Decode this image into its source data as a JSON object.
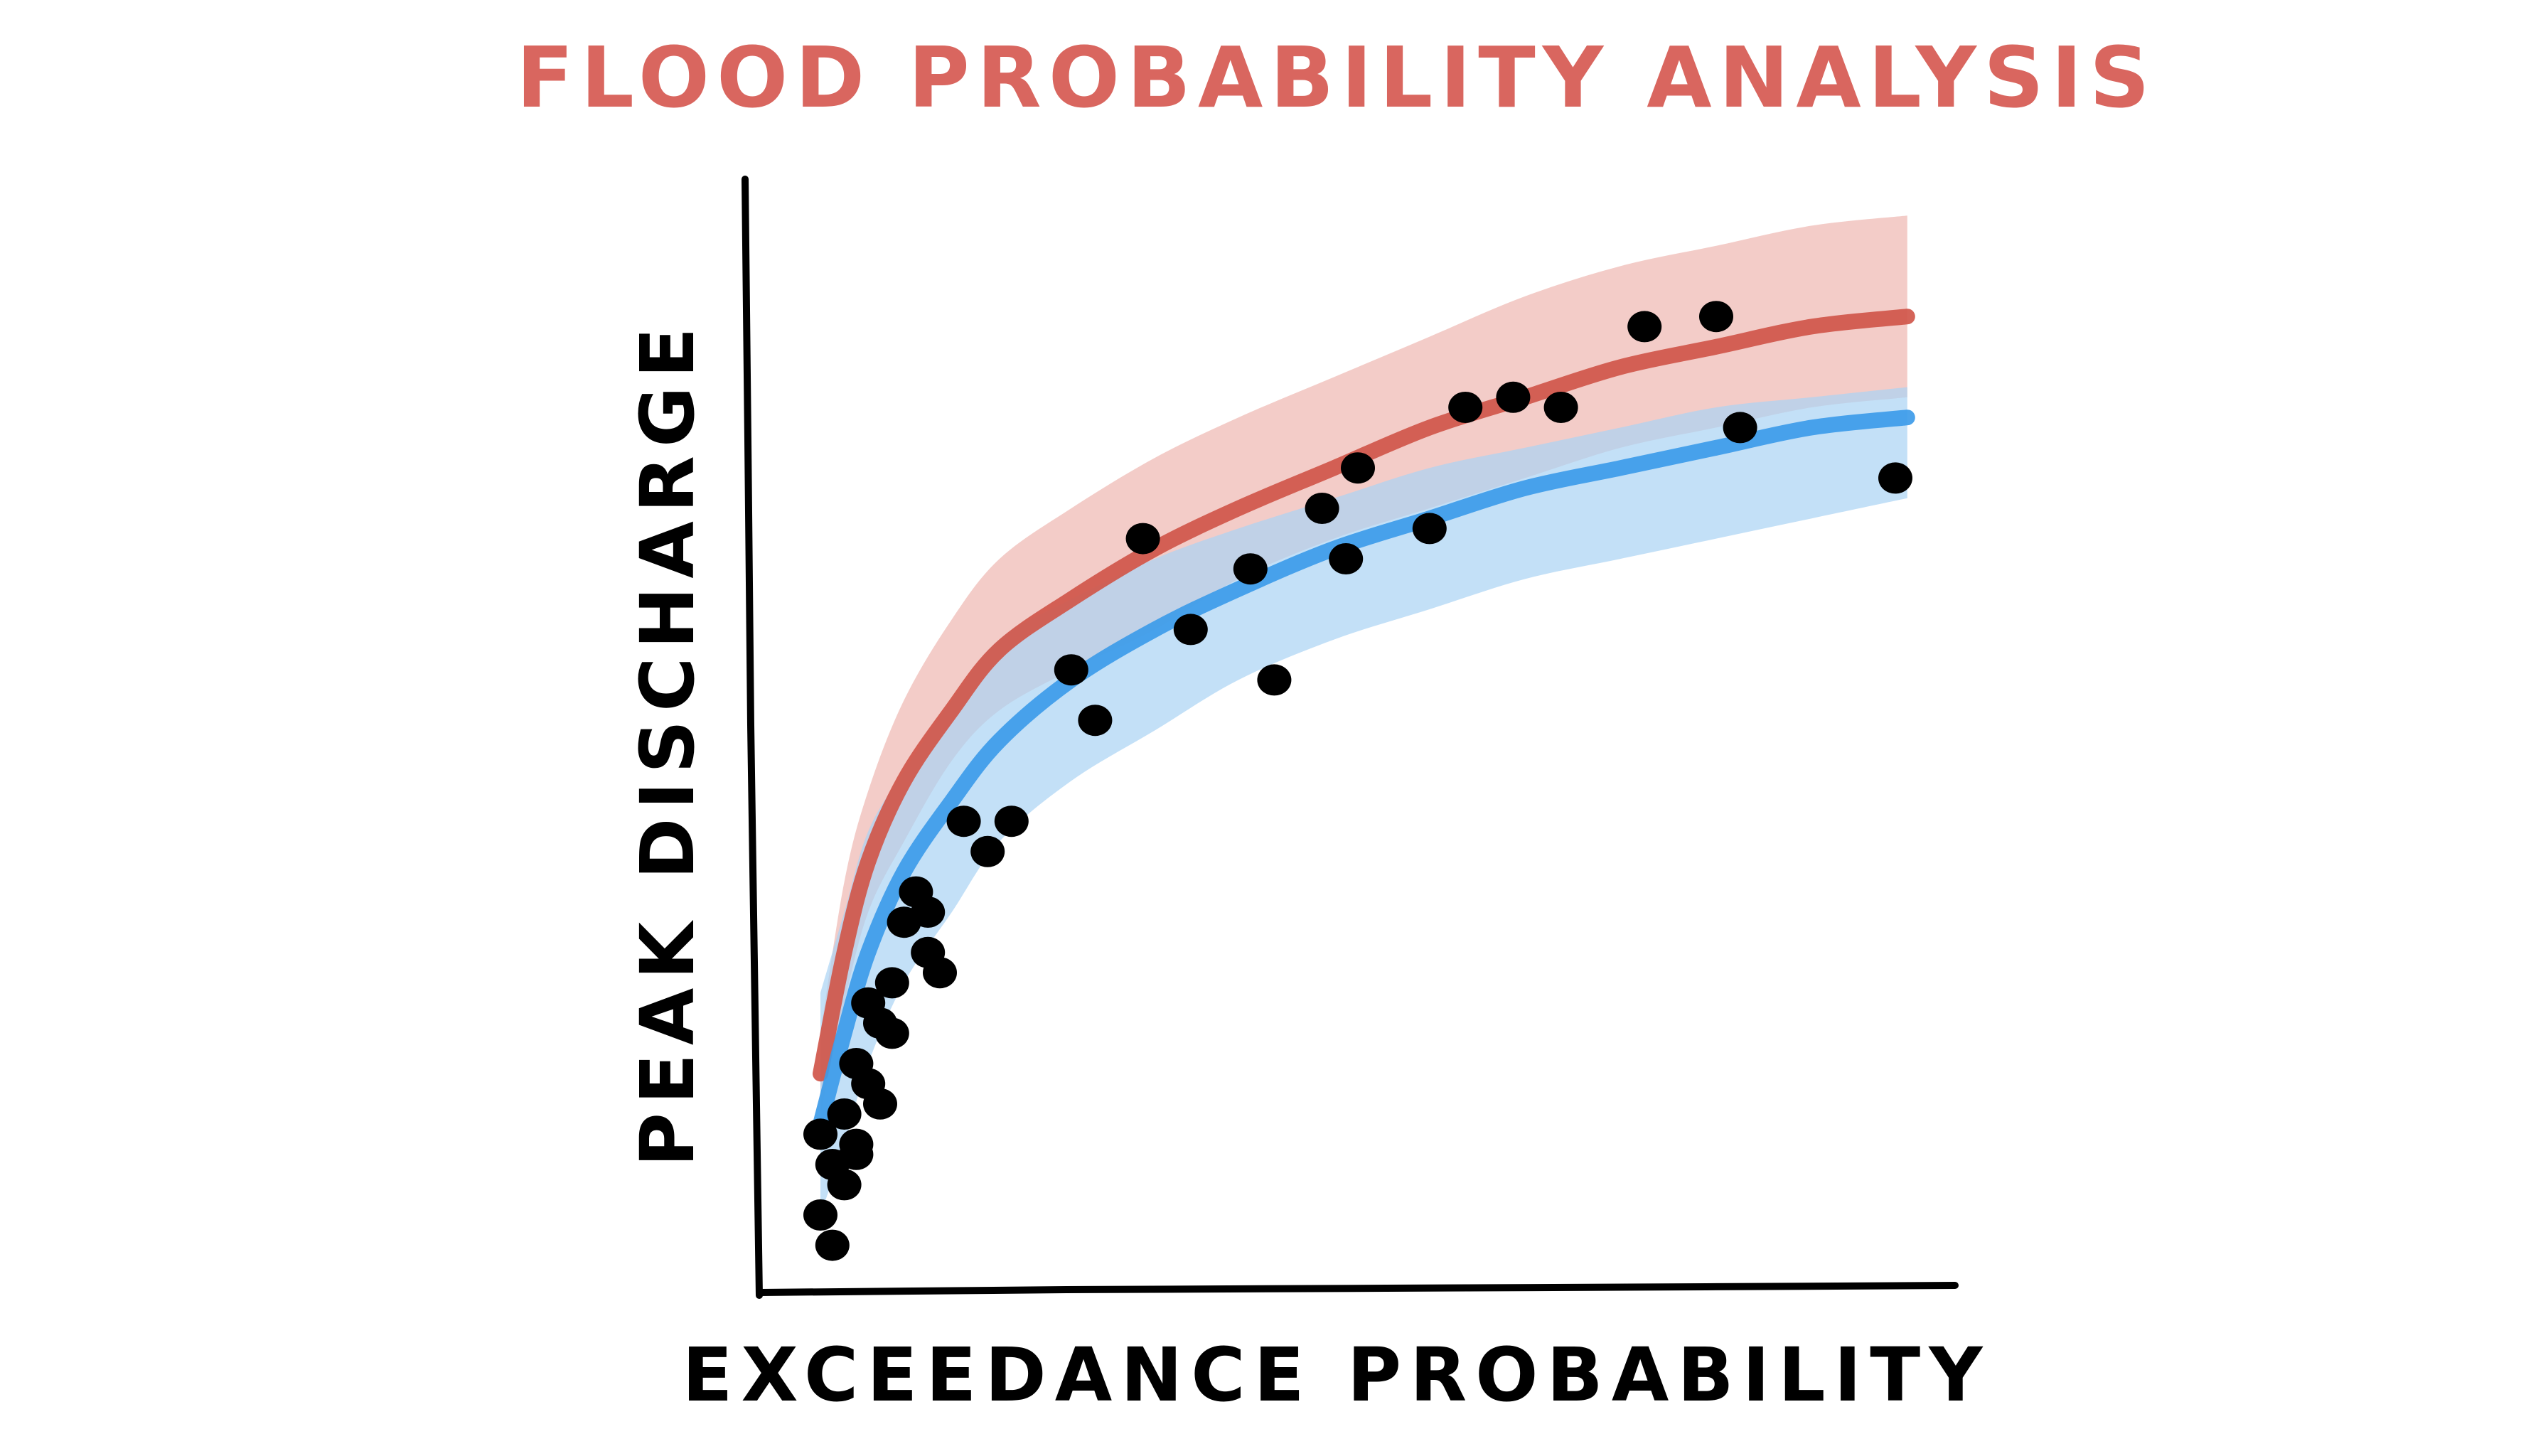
{
  "chart_data": {
    "type": "scatter",
    "title": "FLOOD PROBABILITY ANALYSIS",
    "xlabel": "EXCEEDANCE PROBABILITY",
    "ylabel": "PEAK DISCHARGE",
    "xlim": [
      0,
      1
    ],
    "ylim": [
      0,
      1
    ],
    "grid": false,
    "axis_tick_labels": false,
    "colors": {
      "title": "#d9665f",
      "upper_curve": "#d0564a",
      "upper_band": "#eeb6b1",
      "lower_curve": "#3d9be9",
      "lower_band": "#a9d3f3",
      "points": "#000000",
      "axes": "#000000"
    },
    "series": [
      {
        "type": "line",
        "color": "#d0564a",
        "x": [
          0.05,
          0.07,
          0.09,
          0.12,
          0.16,
          0.2,
          0.26,
          0.33,
          0.4,
          0.48,
          0.56,
          0.64,
          0.72,
          0.8,
          0.88,
          0.96
        ],
        "y": [
          0.19,
          0.31,
          0.4,
          0.48,
          0.55,
          0.61,
          0.66,
          0.71,
          0.75,
          0.79,
          0.83,
          0.86,
          0.89,
          0.91,
          0.93,
          0.94
        ],
        "band_lower": [
          0.15,
          0.26,
          0.35,
          0.42,
          0.5,
          0.55,
          0.59,
          0.63,
          0.68,
          0.72,
          0.75,
          0.78,
          0.81,
          0.83,
          0.85,
          0.86
        ],
        "band_upper": [
          0.23,
          0.38,
          0.47,
          0.56,
          0.64,
          0.7,
          0.75,
          0.8,
          0.84,
          0.88,
          0.92,
          0.96,
          0.99,
          1.01,
          1.03,
          1.04
        ]
      },
      {
        "type": "line",
        "color": "#3d9be9",
        "x": [
          0.05,
          0.07,
          0.09,
          0.12,
          0.16,
          0.2,
          0.26,
          0.33,
          0.4,
          0.48,
          0.56,
          0.64,
          0.72,
          0.8,
          0.88,
          0.96
        ],
        "y": [
          0.14,
          0.23,
          0.31,
          0.39,
          0.46,
          0.52,
          0.58,
          0.63,
          0.67,
          0.71,
          0.74,
          0.77,
          0.79,
          0.81,
          0.83,
          0.84
        ],
        "band_lower": [
          0.05,
          0.12,
          0.2,
          0.28,
          0.35,
          0.42,
          0.48,
          0.53,
          0.58,
          0.62,
          0.65,
          0.68,
          0.7,
          0.72,
          0.74,
          0.76
        ],
        "band_upper": [
          0.27,
          0.35,
          0.43,
          0.49,
          0.56,
          0.62,
          0.66,
          0.7,
          0.73,
          0.76,
          0.79,
          0.81,
          0.83,
          0.85,
          0.86,
          0.87
        ]
      },
      {
        "type": "scatter",
        "color": "#000000",
        "x": [
          0.05,
          0.05,
          0.06,
          0.06,
          0.07,
          0.07,
          0.08,
          0.08,
          0.09,
          0.08,
          0.09,
          0.1,
          0.1,
          0.11,
          0.11,
          0.12,
          0.13,
          0.14,
          0.14,
          0.15,
          0.17,
          0.19,
          0.21,
          0.26,
          0.28,
          0.32,
          0.36,
          0.41,
          0.43,
          0.47,
          0.49,
          0.5,
          0.56,
          0.59,
          0.63,
          0.67,
          0.74,
          0.8,
          0.82,
          0.95
        ],
        "y": [
          0.13,
          0.05,
          0.1,
          0.02,
          0.08,
          0.15,
          0.12,
          0.2,
          0.26,
          0.11,
          0.18,
          0.24,
          0.16,
          0.23,
          0.28,
          0.34,
          0.37,
          0.35,
          0.31,
          0.29,
          0.44,
          0.41,
          0.44,
          0.59,
          0.54,
          0.72,
          0.63,
          0.69,
          0.58,
          0.75,
          0.7,
          0.79,
          0.73,
          0.85,
          0.86,
          0.85,
          0.93,
          0.94,
          0.83,
          0.78
        ]
      }
    ]
  }
}
